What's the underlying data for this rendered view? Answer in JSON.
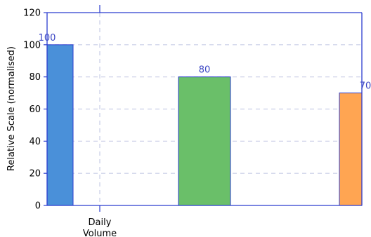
{
  "chart_data": {
    "type": "bar",
    "categories": [
      "Daily\nVolume"
    ],
    "series": [
      {
        "values": [
          100
        ],
        "color": "#4a90d9"
      },
      {
        "values": [
          80
        ],
        "color": "#6abf69"
      },
      {
        "values": [
          70
        ],
        "color": "#ffa552"
      }
    ],
    "title": "",
    "xlabel": "",
    "ylabel": "Relative Scale (normalised)",
    "ylim": [
      0,
      120
    ],
    "yticks": [
      0,
      20,
      40,
      60,
      80,
      100,
      120
    ],
    "grid": true,
    "colors": {
      "axis": "#2b3ccf",
      "grid": "#c9cde6",
      "bar_edge": "#2b3ccf",
      "data_label": "#3b46c4"
    }
  }
}
